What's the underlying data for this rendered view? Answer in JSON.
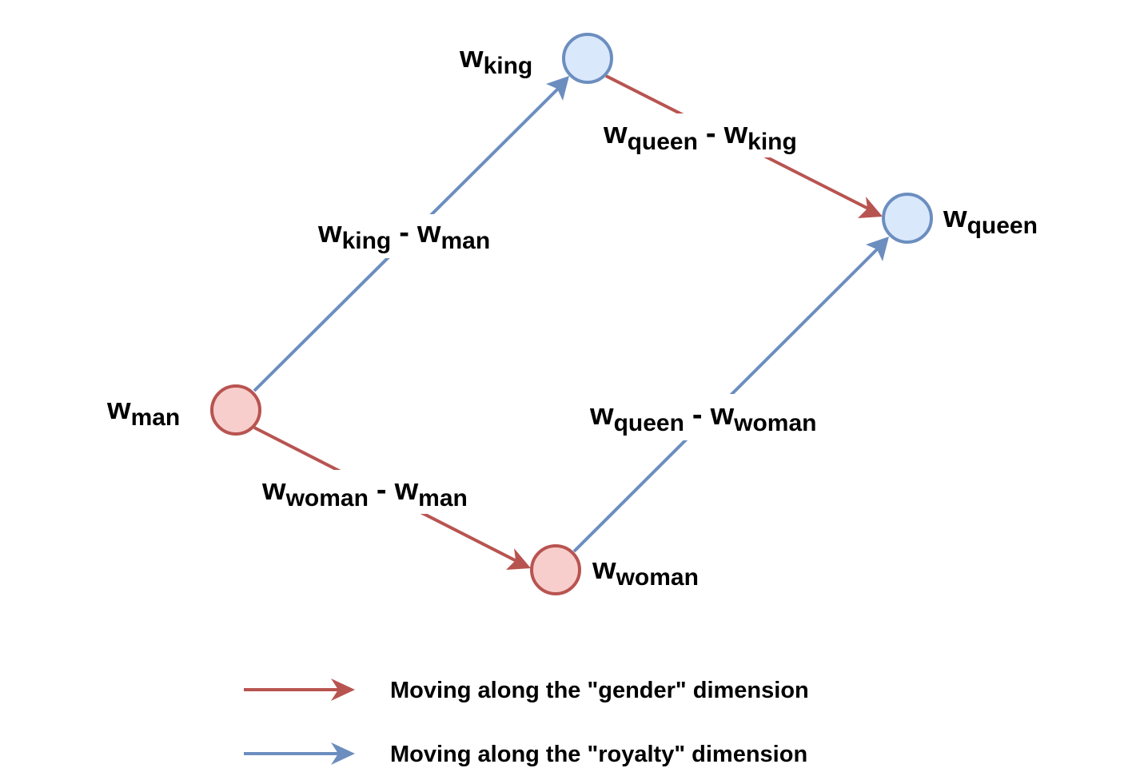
{
  "colors": {
    "gender": "#b85450",
    "royalty": "#6c8ebf",
    "gender_node_fill": "#f8cecc",
    "royalty_node_fill": "#dae8fc"
  },
  "nodes": {
    "man": {
      "base": "w",
      "sub": "man"
    },
    "king": {
      "base": "w",
      "sub": "king"
    },
    "woman": {
      "base": "w",
      "sub": "woman"
    },
    "queen": {
      "base": "w",
      "sub": "queen"
    }
  },
  "edges": {
    "king_minus_man": {
      "a_base": "w",
      "a_sub": "king",
      "op": "-",
      "b_base": "w",
      "b_sub": "man"
    },
    "queen_minus_king": {
      "a_base": "w",
      "a_sub": "queen",
      "op": "-",
      "b_base": "w",
      "b_sub": "king"
    },
    "woman_minus_man": {
      "a_base": "w",
      "a_sub": "woman",
      "op": "-",
      "b_base": "w",
      "b_sub": "man"
    },
    "queen_minus_woman": {
      "a_base": "w",
      "a_sub": "queen",
      "op": "-",
      "b_base": "w",
      "b_sub": "woman"
    }
  },
  "legend": {
    "gender": "Moving along the \"gender\" dimension",
    "royalty": "Moving along the \"royalty\" dimension"
  }
}
